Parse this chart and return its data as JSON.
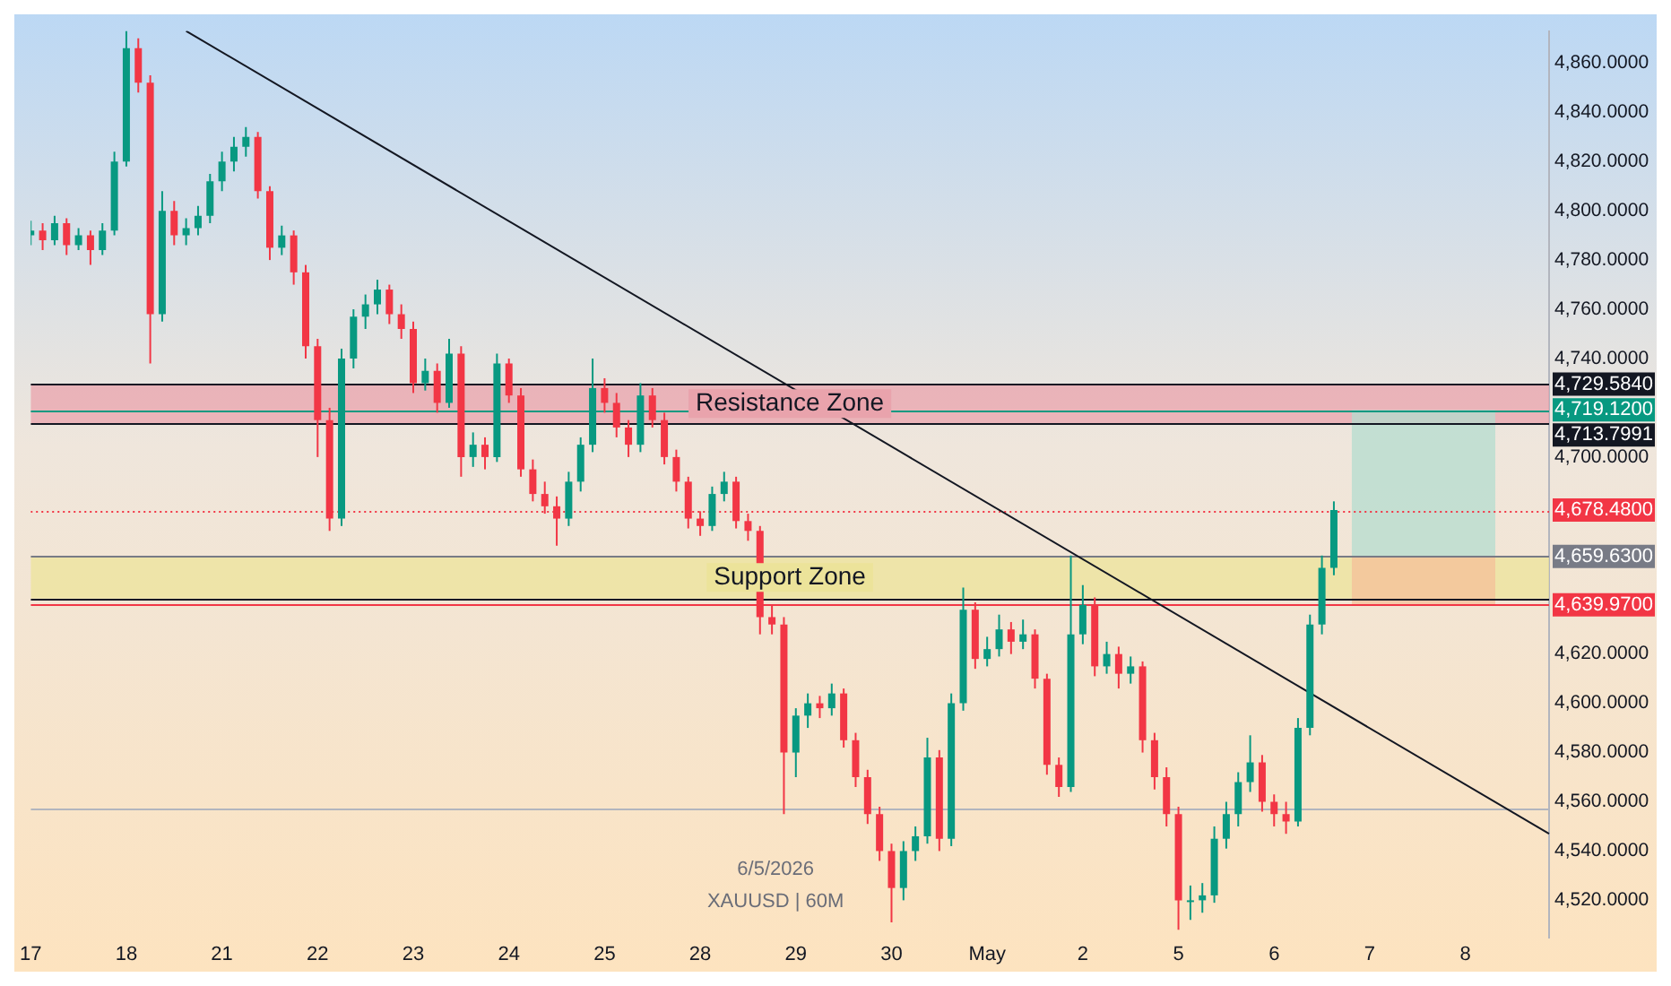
{
  "chart_data": {
    "type": "candlestick",
    "annotations": [
      "6/5/2026",
      "XAUUSD | 60M"
    ],
    "categories": [
      "17",
      null,
      null,
      null,
      null,
      null,
      null,
      null,
      "18",
      null,
      null,
      null,
      null,
      null,
      null,
      null,
      "21",
      null,
      null,
      null,
      null,
      null,
      null,
      null,
      "22",
      null,
      null,
      null,
      null,
      null,
      null,
      null,
      "23",
      null,
      null,
      null,
      null,
      null,
      null,
      null,
      "24",
      null,
      null,
      null,
      null,
      null,
      null,
      null,
      "25",
      null,
      null,
      null,
      null,
      null,
      null,
      null,
      "28",
      null,
      null,
      null,
      null,
      null,
      null,
      null,
      "29",
      null,
      null,
      null,
      null,
      null,
      null,
      null,
      "30",
      null,
      null,
      null,
      null,
      null,
      null,
      null,
      "May",
      null,
      null,
      null,
      null,
      null,
      null,
      null,
      "2",
      null,
      null,
      null,
      null,
      null,
      null,
      null,
      "5",
      null,
      null,
      null,
      null,
      null,
      null,
      null,
      "6",
      null,
      null,
      null,
      null,
      null,
      null,
      null,
      "7",
      null,
      null,
      null,
      null,
      null,
      null,
      null,
      "8",
      null,
      null,
      null,
      null,
      null,
      null,
      null
    ],
    "ylim": [
      4505,
      4873
    ],
    "yticks": [
      {
        "value": 4520,
        "label": "4,520.0000"
      },
      {
        "value": 4540,
        "label": "4,540.0000"
      },
      {
        "value": 4560,
        "label": "4,560.0000"
      },
      {
        "value": 4580,
        "label": "4,580.0000"
      },
      {
        "value": 4600,
        "label": "4,600.0000"
      },
      {
        "value": 4620,
        "label": "4,620.0000"
      },
      {
        "value": 4700,
        "label": "4,700.0000"
      },
      {
        "value": 4740,
        "label": "4,740.0000"
      },
      {
        "value": 4760,
        "label": "4,760.0000"
      },
      {
        "value": 4780,
        "label": "4,780.0000"
      },
      {
        "value": 4800,
        "label": "4,800.0000"
      },
      {
        "value": 4820,
        "label": "4,820.0000"
      },
      {
        "value": 4840,
        "label": "4,840.0000"
      },
      {
        "value": 4860,
        "label": "4,860.0000"
      }
    ],
    "bands": [
      {
        "axis": "y",
        "from": 4713.7991,
        "to": 4729.584,
        "label": "Resistance Zone",
        "color": "#e9a3ac"
      },
      {
        "axis": "y",
        "from": 4642.5,
        "to": 4659.63,
        "label": "Support Zone",
        "color": "#ece39a"
      },
      {
        "axis": "y",
        "from": 4659.63,
        "to": 4719.12,
        "color": "#b4dccf"
      },
      {
        "axis": "y",
        "from": 4639.97,
        "to": 4659.63,
        "color": "#f4c09a"
      }
    ],
    "ref_lines": [
      {
        "axis": "y",
        "value": 4729.584,
        "label": "4,729.5840",
        "color": "#131722"
      },
      {
        "axis": "y",
        "value": 4719.12,
        "label": "4,719.1200",
        "color": "#089981"
      },
      {
        "axis": "y",
        "value": 4713.7991,
        "label": "4,713.7991",
        "color": "#131722"
      },
      {
        "axis": "y",
        "value": 4678.48,
        "label": "4,678.4800",
        "color": "#f23645",
        "line_style": "dotted"
      },
      {
        "axis": "y",
        "value": 4659.63,
        "label": "4,659.6300",
        "color": "#787b86"
      },
      {
        "axis": "y",
        "value": 4642.5,
        "color": "#131722"
      },
      {
        "axis": "y",
        "value": 4639.97,
        "label": "4,639.9700",
        "color": "#f23645"
      },
      {
        "axis": "y",
        "value": 4557,
        "color": "#b2b5be"
      }
    ],
    "series": [
      {
        "ohlc": [
          [
            4790,
            4796,
            4786,
            4792
          ],
          [
            4792,
            4795,
            4784,
            4788
          ],
          [
            4788,
            4798,
            4786,
            4795
          ],
          [
            4795,
            4797,
            4782,
            4786
          ],
          [
            4786,
            4793,
            4784,
            4790
          ],
          [
            4790,
            4792,
            4778,
            4784
          ],
          [
            4784,
            4795,
            4782,
            4792
          ],
          [
            4792,
            4824,
            4790,
            4820
          ],
          [
            4820,
            4873,
            4818,
            4866
          ],
          [
            4866,
            4870,
            4848,
            4852
          ],
          [
            4852,
            4855,
            4738,
            4758
          ],
          [
            4758,
            4808,
            4755,
            4800
          ],
          [
            4800,
            4804,
            4786,
            4790
          ],
          [
            4790,
            4797,
            4786,
            4793
          ],
          [
            4793,
            4802,
            4790,
            4798
          ],
          [
            4798,
            4815,
            4795,
            4812
          ],
          [
            4812,
            4824,
            4808,
            4820
          ],
          [
            4820,
            4830,
            4816,
            4826
          ],
          [
            4826,
            4834,
            4822,
            4830
          ],
          [
            4830,
            4832,
            4805,
            4808
          ],
          [
            4808,
            4810,
            4780,
            4785
          ],
          [
            4785,
            4794,
            4782,
            4790
          ],
          [
            4790,
            4792,
            4770,
            4775
          ],
          [
            4775,
            4778,
            4740,
            4745
          ],
          [
            4745,
            4748,
            4700,
            4715
          ],
          [
            4715,
            4720,
            4670,
            4675
          ],
          [
            4675,
            4744,
            4672,
            4740
          ],
          [
            4740,
            4760,
            4736,
            4757
          ],
          [
            4757,
            4766,
            4752,
            4762
          ],
          [
            4762,
            4772,
            4758,
            4768
          ],
          [
            4768,
            4770,
            4754,
            4758
          ],
          [
            4758,
            4762,
            4748,
            4752
          ],
          [
            4752,
            4755,
            4726,
            4730
          ],
          [
            4730,
            4740,
            4727,
            4735
          ],
          [
            4735,
            4738,
            4718,
            4722
          ],
          [
            4722,
            4748,
            4720,
            4742
          ],
          [
            4742,
            4745,
            4692,
            4700
          ],
          [
            4700,
            4710,
            4696,
            4705
          ],
          [
            4705,
            4708,
            4695,
            4700
          ],
          [
            4700,
            4742,
            4698,
            4738
          ],
          [
            4738,
            4740,
            4722,
            4725
          ],
          [
            4725,
            4728,
            4692,
            4695
          ],
          [
            4695,
            4699,
            4682,
            4685
          ],
          [
            4685,
            4690,
            4677,
            4680
          ],
          [
            4680,
            4684,
            4664,
            4675
          ],
          [
            4675,
            4694,
            4672,
            4690
          ],
          [
            4690,
            4708,
            4686,
            4705
          ],
          [
            4705,
            4740,
            4702,
            4728
          ],
          [
            4728,
            4732,
            4718,
            4722
          ],
          [
            4722,
            4726,
            4708,
            4712
          ],
          [
            4712,
            4715,
            4700,
            4705
          ],
          [
            4705,
            4730,
            4702,
            4725
          ],
          [
            4725,
            4728,
            4712,
            4715
          ],
          [
            4715,
            4718,
            4697,
            4700
          ],
          [
            4700,
            4703,
            4686,
            4690
          ],
          [
            4690,
            4692,
            4671,
            4675
          ],
          [
            4675,
            4678,
            4668,
            4672
          ],
          [
            4672,
            4688,
            4670,
            4685
          ],
          [
            4685,
            4694,
            4682,
            4690
          ],
          [
            4690,
            4692,
            4671,
            4674
          ],
          [
            4674,
            4677,
            4666,
            4670
          ],
          [
            4670,
            4672,
            4628,
            4635
          ],
          [
            4635,
            4640,
            4628,
            4632
          ],
          [
            4632,
            4635,
            4555,
            4580
          ],
          [
            4580,
            4598,
            4570,
            4595
          ],
          [
            4595,
            4604,
            4590,
            4600
          ],
          [
            4600,
            4603,
            4594,
            4598
          ],
          [
            4598,
            4608,
            4595,
            4604
          ],
          [
            4604,
            4606,
            4582,
            4585
          ],
          [
            4585,
            4588,
            4566,
            4570
          ],
          [
            4570,
            4573,
            4551,
            4555
          ],
          [
            4555,
            4558,
            4536,
            4540
          ],
          [
            4540,
            4543,
            4511,
            4525
          ],
          [
            4525,
            4544,
            4520,
            4540
          ],
          [
            4540,
            4550,
            4536,
            4546
          ],
          [
            4546,
            4586,
            4543,
            4578
          ],
          [
            4578,
            4581,
            4540,
            4545
          ],
          [
            4545,
            4604,
            4542,
            4600
          ],
          [
            4600,
            4647,
            4597,
            4638
          ],
          [
            4638,
            4641,
            4614,
            4618
          ],
          [
            4618,
            4627,
            4615,
            4622
          ],
          [
            4622,
            4636,
            4619,
            4630
          ],
          [
            4630,
            4633,
            4620,
            4625
          ],
          [
            4625,
            4634,
            4622,
            4628
          ],
          [
            4628,
            4630,
            4606,
            4610
          ],
          [
            4610,
            4612,
            4571,
            4575
          ],
          [
            4575,
            4578,
            4562,
            4566
          ],
          [
            4566,
            4660,
            4564,
            4628
          ],
          [
            4628,
            4648,
            4624,
            4640
          ],
          [
            4640,
            4643,
            4611,
            4615
          ],
          [
            4615,
            4625,
            4612,
            4620
          ],
          [
            4620,
            4623,
            4606,
            4612
          ],
          [
            4612,
            4619,
            4608,
            4615
          ],
          [
            4615,
            4617,
            4580,
            4585
          ],
          [
            4585,
            4588,
            4565,
            4570
          ],
          [
            4570,
            4574,
            4550,
            4555
          ],
          [
            4555,
            4558,
            4508,
            4520
          ],
          [
            4520,
            4526,
            4512,
            4520
          ],
          [
            4520,
            4527,
            4515,
            4522
          ],
          [
            4522,
            4550,
            4519,
            4545
          ],
          [
            4545,
            4560,
            4541,
            4555
          ],
          [
            4555,
            4572,
            4550,
            4568
          ],
          [
            4568,
            4587,
            4564,
            4576
          ],
          [
            4576,
            4579,
            4556,
            4560
          ],
          [
            4560,
            4563,
            4550,
            4555
          ],
          [
            4555,
            4560,
            4547,
            4552
          ],
          [
            4552,
            4594,
            4550,
            4590
          ],
          [
            4590,
            4636,
            4587,
            4632
          ],
          [
            4632,
            4660,
            4628,
            4655
          ],
          [
            4655,
            4682,
            4652,
            4678.48
          ],
          null,
          null,
          null,
          null,
          null,
          null,
          null,
          null,
          null,
          null,
          null,
          null,
          null,
          null,
          null,
          null,
          null,
          null
        ],
        "colors": [
          "#089981",
          "#f23645",
          "#089981",
          "#f23645",
          "#089981",
          "#f23645",
          "#089981",
          "#089981",
          "#089981",
          "#f23645",
          "#f23645",
          "#089981",
          "#f23645",
          "#089981",
          "#089981",
          "#089981",
          "#089981",
          "#089981",
          "#089981",
          "#f23645",
          "#f23645",
          "#089981",
          "#f23645",
          "#f23645",
          "#f23645",
          "#f23645",
          "#089981",
          "#089981",
          "#089981",
          "#089981",
          "#f23645",
          "#f23645",
          "#f23645",
          "#089981",
          "#f23645",
          "#089981",
          "#f23645",
          "#089981",
          "#f23645",
          "#089981",
          "#f23645",
          "#f23645",
          "#f23645",
          "#f23645",
          "#f23645",
          "#089981",
          "#089981",
          "#089981",
          "#f23645",
          "#f23645",
          "#f23645",
          "#089981",
          "#f23645",
          "#f23645",
          "#f23645",
          "#f23645",
          "#f23645",
          "#089981",
          "#089981",
          "#f23645",
          "#f23645",
          "#f23645",
          "#f23645",
          "#f23645",
          "#089981",
          "#089981",
          "#f23645",
          "#089981",
          "#f23645",
          "#f23645",
          "#f23645",
          "#f23645",
          "#f23645",
          "#089981",
          "#089981",
          "#089981",
          "#f23645",
          "#089981",
          "#089981",
          "#f23645",
          "#089981",
          "#089981",
          "#f23645",
          "#089981",
          "#f23645",
          "#f23645",
          "#f23645",
          "#089981",
          "#089981",
          "#f23645",
          "#089981",
          "#f23645",
          "#089981",
          "#f23645",
          "#f23645",
          "#f23645",
          "#f23645",
          "#089981",
          "#089981",
          "#089981",
          "#089981",
          "#089981",
          "#089981",
          "#f23645",
          "#f23645",
          "#f23645",
          "#089981",
          "#089981",
          "#089981",
          "#089981",
          null,
          null,
          null,
          null,
          null,
          null,
          null,
          null,
          null,
          null,
          null,
          null,
          null,
          null,
          null,
          null,
          null,
          null
        ]
      },
      {
        "type": "line",
        "color": "#131722",
        "values": [
          null,
          null,
          null,
          null,
          null,
          null,
          null,
          null,
          null,
          null,
          null,
          null,
          null,
          4873,
          null,
          null,
          null,
          null,
          null,
          null,
          null,
          null,
          null,
          null,
          null,
          null,
          null,
          null,
          null,
          null,
          null,
          null,
          null,
          null,
          null,
          null,
          null,
          null,
          null,
          null,
          null,
          null,
          null,
          null,
          null,
          null,
          null,
          null,
          null,
          null,
          null,
          null,
          null,
          null,
          null,
          null,
          null,
          null,
          null,
          null,
          null,
          null,
          null,
          null,
          null,
          null,
          null,
          null,
          null,
          null,
          null,
          null,
          null,
          null,
          null,
          null,
          null,
          null,
          null,
          null,
          null,
          null,
          null,
          null,
          null,
          null,
          null,
          null,
          null,
          null,
          null,
          null,
          null,
          null,
          null,
          null,
          null,
          null,
          null,
          null,
          null,
          null,
          null,
          null,
          null,
          null,
          null,
          null,
          null,
          null,
          null,
          null,
          null,
          null,
          null,
          null,
          null,
          null,
          null,
          null,
          null,
          null,
          null,
          null,
          null,
          null,
          null,
          4547
        ]
      }
    ]
  }
}
